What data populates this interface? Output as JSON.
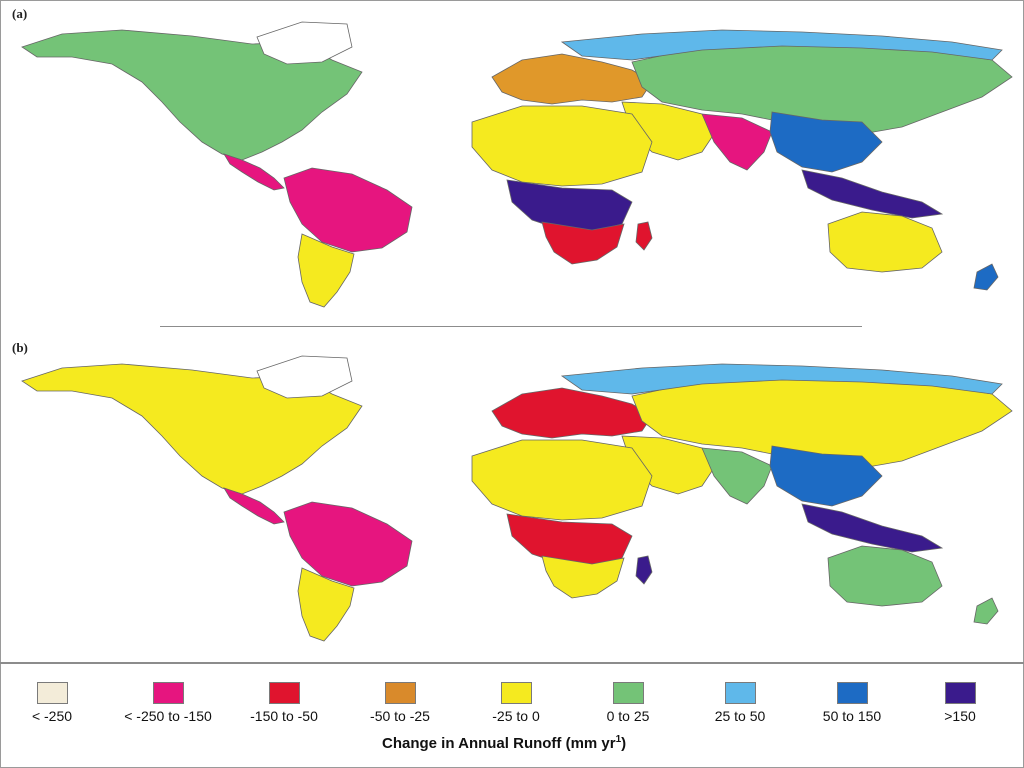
{
  "panels": [
    {
      "label": "(a)",
      "regions": {
        "north_america": "#74c377",
        "greenland": "#ffffff",
        "central_america": "#e6157f",
        "south_america_north": "#e6157f",
        "south_america_south": "#f5ea1f",
        "europe": "#e0982a",
        "north_asia": "#74c377",
        "siberia": "#5fb8ea",
        "middle_east": "#f5ea1f",
        "india": "#e6157f",
        "east_asia": "#1d6bc4",
        "southeast_asia": "#3a1b8c",
        "north_africa": "#f5ea1f",
        "central_africa": "#3a1b8c",
        "southern_africa": "#e0142e",
        "australia": "#f5ea1f",
        "new_zealand": "#1d6bc4",
        "madagascar": "#e0142e"
      }
    },
    {
      "label": "(b)",
      "regions": {
        "north_america": "#f5ea1f",
        "greenland": "#ffffff",
        "central_america": "#e6157f",
        "south_america_north": "#e6157f",
        "south_america_south": "#f5ea1f",
        "europe": "#e0142e",
        "north_asia": "#f5ea1f",
        "siberia": "#5fb8ea",
        "middle_east": "#f5ea1f",
        "india": "#74c377",
        "east_asia": "#1d6bc4",
        "southeast_asia": "#3a1b8c",
        "north_africa": "#f5ea1f",
        "central_africa": "#e0142e",
        "southern_africa": "#f5ea1f",
        "australia": "#74c377",
        "new_zealand": "#74c377",
        "madagascar": "#3a1b8c"
      }
    }
  ],
  "legend": {
    "title_main": "Change in Annual Runoff (mm yr",
    "title_sup": "1",
    "title_end": ")",
    "items": [
      {
        "label": "< -250",
        "color": "#f3ecd9"
      },
      {
        "label": "< -250 to -150",
        "color": "#e6157f"
      },
      {
        "label": "-150 to -50",
        "color": "#e0142e"
      },
      {
        "label": "-50 to -25",
        "color": "#d98a2b"
      },
      {
        "label": "-25 to 0",
        "color": "#f5ea1f"
      },
      {
        "label": "0 to 25",
        "color": "#74c377"
      },
      {
        "label": "25 to 50",
        "color": "#5fb8ea"
      },
      {
        "label": "50 to 150",
        "color": "#1d6bc4"
      },
      {
        "label": ">150",
        "color": "#3a1b8c"
      }
    ]
  }
}
